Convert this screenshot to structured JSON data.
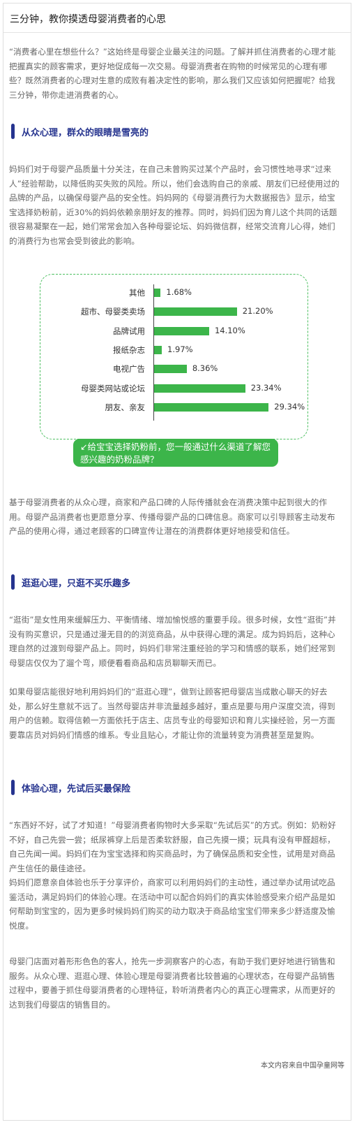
{
  "article": {
    "title": "三分钟，教你摸透母婴消费者的心思",
    "intro": "“消费者心里在想些什么？”这始终是母婴企业最关注的问题。了解并抓住消费者的心理才能把握真实的顾客需求，更好地促成每一次交易。母婴消费者在购物的时候常见的心理有哪些？既然消费者的心理对生意的成败有着决定性的影响，那么我们又应该如何把握呢？给我三分钟，带你走进消费者的心。",
    "sections": [
      {
        "heading": "从众心理，群众的眼睛是雪亮的",
        "paragraphs": [
          "妈妈们对于母婴产品质量十分关注，在自己未曾购买过某个产品时，会习惯性地寻求“过来人”经验帮助，以降低购买失败的风险。所以，他们会选购自己的亲戚、朋友们已经使用过的品牌的产品，以确保母婴产品的安全性。妈妈网的《母婴消费行为大数据报告》显示，给宝宝选择奶粉前，近30%的妈妈依赖亲朋好友的推荐。同时，妈妈们因为育儿这个共同的话题很容易凝聚在一起，她们常常会加入各种母婴论坛、妈妈微信群，经常交流育儿心得，她们的消费行为也常会受到彼此的影响。",
          "基于母婴消费者的从众心理，商家和产品口碑的人际传播就会在消费决策中起到很大的作用。母婴产品消费者也更愿意分享、传播母婴产品的口碑信息。商家可以引导顾客主动发布产品的使用心得，通过老顾客的口碑宣传让潜在的消费群体更好地接受和信任。"
        ]
      },
      {
        "heading": "逛逛心理，只逛不买乐趣多",
        "paragraphs": [
          "“逛街”是女性用来缓解压力、平衡情绪、增加愉悦感的重要手段。很多时候，女性“逛街”并没有购买意识，只是通过漫无目的的浏览商品，从中获得心理的满足。成为妈妈后，这种心理自然的过渡到母婴产品上。同时，妈妈们非常注重经验的学习和情感的联系，她们经常到母婴店仅仅为了遛个弯，顺便看看商品和店员聊聊天而已。",
          "如果母婴店能很好地利用妈妈们的“逛逛心理”，做到让顾客把母婴店当成散心聊天的好去处，那么好生意就不远了。当然母婴店并非流量越多越好，重点是要与用户深度交流，得到用户的信赖。取得信赖一方面依托于店主、店员专业的母婴知识和育儿实操经验，另一方面要靠店员对妈妈们情感的维系。专业且贴心，才能让你的流量转变为消费甚至是复购。"
        ]
      },
      {
        "heading": "体验心理，先试后买最保险",
        "paragraphs": [
          "“东西好不好，试了才知道！”母婴消费者购物时大多采取“先试后买”的方式。例如：奶粉好不好，自己先尝一尝；纸尿裤穿上后是否柔软舒服，自己先摸一摸；玩具有没有甲醛超标，自己先闻一闻。妈妈们在为宝宝选择和购买商品时，为了确保品质和安全性，试用是对商品产生信任的最佳途径。",
          "妈妈们愿意亲自体验也乐于分享评价，商家可以利用妈妈们的主动性，通过举办试用试吃品鉴活动，满足妈妈们的体验心理。在活动中可以配合妈妈们的真实体验感受来介绍产品是如何帮助到宝宝的，因为更多时候妈妈们购买的动力取决于商品给宝宝们带来多少舒适度及愉悦度。"
        ]
      }
    ],
    "conclusion": "母婴门店面对着形形色色的客人，抢先一步洞察客户的心态，有助于我们更好地进行销售和服务。从众心理、逛逛心理、体验心理是母婴消费者比较普遍的心理状态，在母婴产品销售过程中，要善于抓住母婴消费者的心理特征，聆听消费者内心的真正心理需求，从而更好的达到我们母婴店的销售目的。",
    "source": "本文内容来自中国孕童网等"
  },
  "chart_data": {
    "type": "bar",
    "orientation": "horizontal",
    "title": "",
    "caption": "↙给宝宝选择奶粉前，您一般通过什么渠道了解您感兴趣的奶粉品牌？",
    "categories": [
      "其他",
      "超市、母婴类卖场",
      "品牌试用",
      "报纸杂志",
      "电视广告",
      "母婴类网站或论坛",
      "朋友、亲友"
    ],
    "values": [
      1.68,
      21.2,
      14.1,
      1.97,
      8.36,
      23.34,
      29.34
    ],
    "value_labels": [
      "1.68%",
      "21.20%",
      "14.10%",
      "1.97%",
      "8.36%",
      "23.34%",
      "29.34%"
    ],
    "unit": "%",
    "xlim": [
      0,
      30
    ],
    "grid": false,
    "legend": "none",
    "bar_color": "#3cb54a",
    "frame_color": "#4cbf60"
  },
  "colors": {
    "heading": "#26348f",
    "body_text": "#666666",
    "title_text": "#222222"
  }
}
